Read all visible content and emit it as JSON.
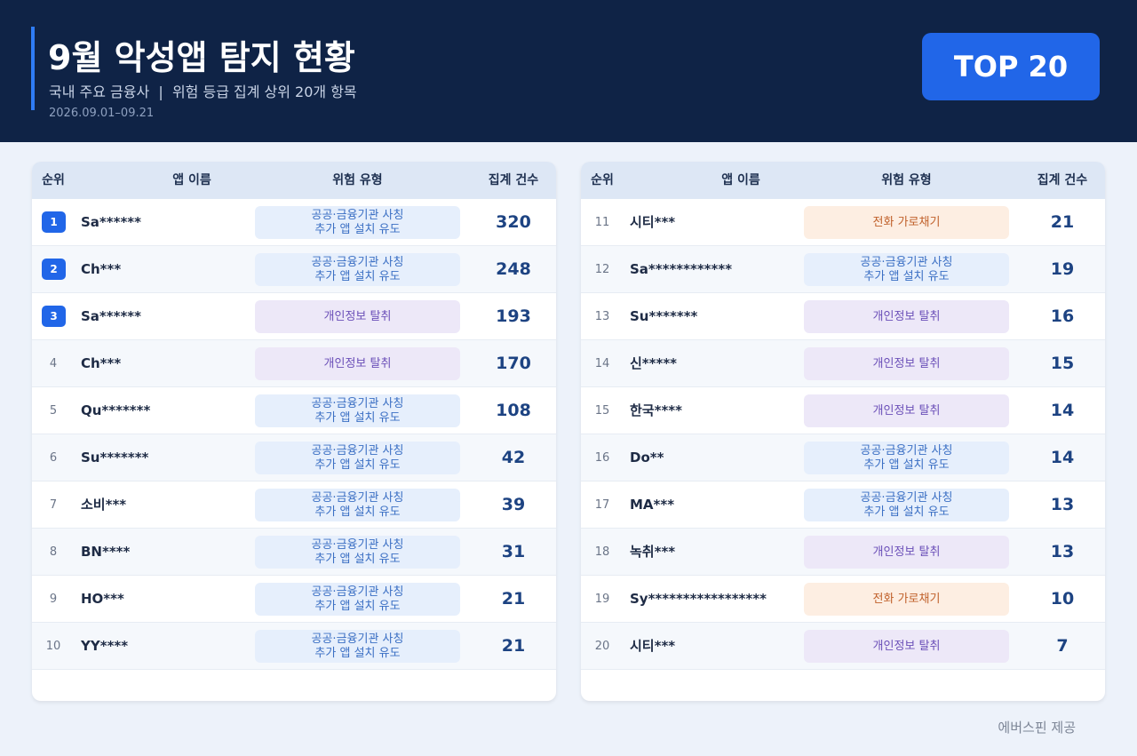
{
  "header": {
    "title": "9월 악성앱 탐지 현황",
    "subtitle": "국내 주요 금융사  |  위험 등급 집계 상위 20개 항목",
    "date": "2026.09.01–09.21",
    "badge": "TOP 20"
  },
  "tables": [
    {
      "columns": [
        "순위",
        "앱 이름",
        "위험 유형",
        "집계 건수"
      ],
      "rows": [
        {
          "rank": 1,
          "name": "Sa******",
          "type": "공공·금융기관 사칭\n추가 앱 설치 유도",
          "count": 320
        },
        {
          "rank": 2,
          "name": "Ch***",
          "type": "공공·금융기관 사칭\n추가 앱 설치 유도",
          "count": 248
        },
        {
          "rank": 3,
          "name": "Sa******",
          "type": "개인정보 탈취",
          "count": 193
        },
        {
          "rank": 4,
          "name": "Ch***",
          "type": "개인정보 탈취",
          "count": 170
        },
        {
          "rank": 5,
          "name": "Qu*******",
          "type": "공공·금융기관 사칭\n추가 앱 설치 유도",
          "count": 108
        },
        {
          "rank": 6,
          "name": "Su*******",
          "type": "공공·금융기관 사칭\n추가 앱 설치 유도",
          "count": 42
        },
        {
          "rank": 7,
          "name": "소비***",
          "type": "공공·금융기관 사칭\n추가 앱 설치 유도",
          "count": 39
        },
        {
          "rank": 8,
          "name": "BN****",
          "type": "공공·금융기관 사칭\n추가 앱 설치 유도",
          "count": 31
        },
        {
          "rank": 9,
          "name": "HO***",
          "type": "공공·금융기관 사칭\n추가 앱 설치 유도",
          "count": 21
        },
        {
          "rank": 10,
          "name": "YY****",
          "type": "공공·금융기관 사칭\n추가 앱 설치 유도",
          "count": 21
        }
      ]
    },
    {
      "columns": [
        "순위",
        "앱 이름",
        "위험 유형",
        "집계 건수"
      ],
      "rows": [
        {
          "rank": 11,
          "name": "시티***",
          "type": "전화 가로채기",
          "count": 21
        },
        {
          "rank": 12,
          "name": "Sa************",
          "type": "공공·금융기관 사칭\n추가 앱 설치 유도",
          "count": 19
        },
        {
          "rank": 13,
          "name": "Su*******",
          "type": "개인정보 탈취",
          "count": 16
        },
        {
          "rank": 14,
          "name": "신*****",
          "type": "개인정보 탈취",
          "count": 15
        },
        {
          "rank": 15,
          "name": "한국****",
          "type": "개인정보 탈취",
          "count": 14
        },
        {
          "rank": 16,
          "name": "Do**",
          "type": "공공·금융기관 사칭\n추가 앱 설치 유도",
          "count": 14
        },
        {
          "rank": 17,
          "name": "MA***",
          "type": "공공·금융기관 사칭\n추가 앱 설치 유도",
          "count": 13
        },
        {
          "rank": 18,
          "name": "녹취***",
          "type": "개인정보 탈취",
          "count": 13
        },
        {
          "rank": 19,
          "name": "Sy*****************",
          "type": "전화 가로채기",
          "count": 10
        },
        {
          "rank": 20,
          "name": "시티***",
          "type": "개인정보 탈취",
          "count": 7
        }
      ]
    }
  ],
  "footer": "에버스핀 제공"
}
